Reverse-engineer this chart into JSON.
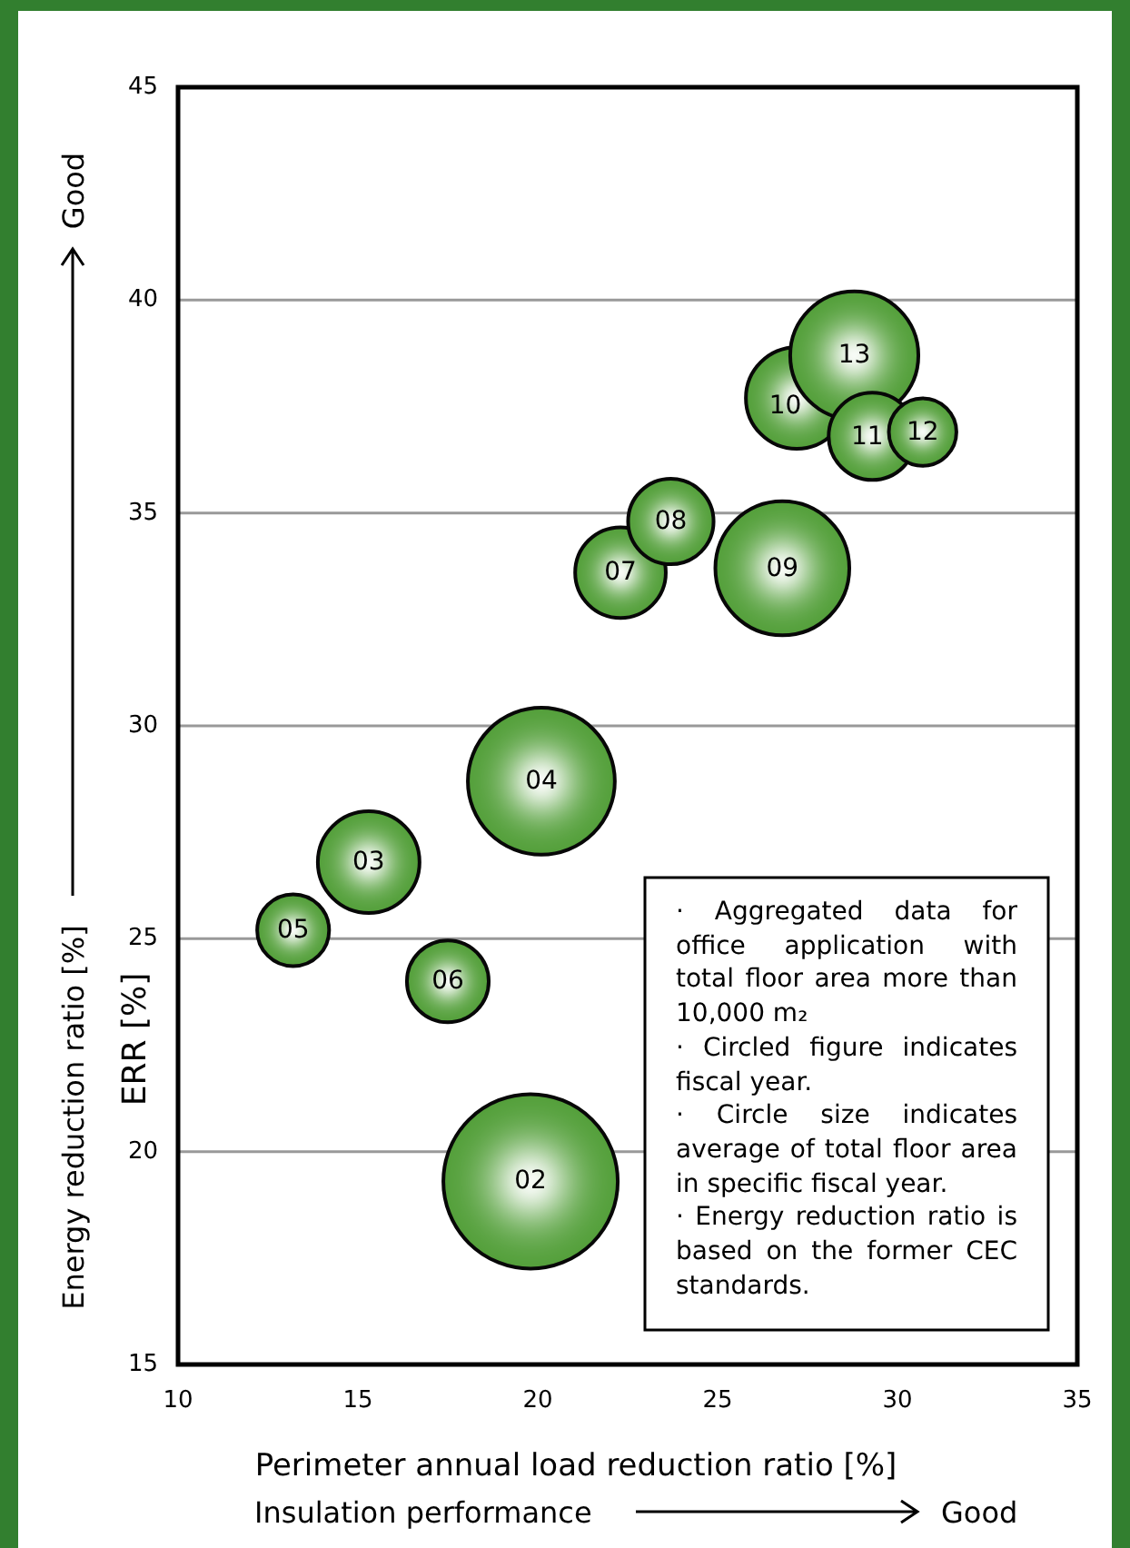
{
  "chart_data": {
    "type": "bubble",
    "xlabel": "Perimeter annual load reduction ratio [%]",
    "ylabel": "ERR [%]",
    "xlim": [
      10,
      35
    ],
    "xticks": [
      10,
      15,
      20,
      25,
      30,
      35
    ],
    "ylim": [
      15,
      45
    ],
    "yticks": [
      15,
      20,
      25,
      30,
      35,
      40,
      45
    ],
    "grid": "y",
    "series": [
      {
        "name": "02",
        "color": "#4f9d35",
        "x": [
          19.8
        ],
        "values": [
          19.3
        ],
        "sizes": [
          1
        ]
      },
      {
        "name": "03",
        "color": "#4f9d35",
        "x": [
          15.3
        ],
        "values": [
          26.8
        ],
        "sizes": [
          0.34
        ]
      },
      {
        "name": "04",
        "color": "#4f9d35",
        "x": [
          20.1
        ],
        "values": [
          28.7
        ],
        "sizes": [
          0.71
        ]
      },
      {
        "name": "05",
        "color": "#4f9d35",
        "x": [
          13.2
        ],
        "values": [
          25.2
        ],
        "sizes": [
          0.17
        ]
      },
      {
        "name": "06",
        "color": "#4f9d35",
        "x": [
          17.5
        ],
        "values": [
          24.0
        ],
        "sizes": [
          0.22
        ]
      },
      {
        "name": "07",
        "color": "#4f9d35",
        "x": [
          22.3
        ],
        "values": [
          33.6
        ],
        "sizes": [
          0.27
        ]
      },
      {
        "name": "08",
        "color": "#4f9d35",
        "x": [
          23.7
        ],
        "values": [
          34.8
        ],
        "sizes": [
          0.24
        ]
      },
      {
        "name": "09",
        "color": "#4f9d35",
        "x": [
          26.8
        ],
        "values": [
          33.7
        ],
        "sizes": [
          0.59
        ]
      },
      {
        "name": "10",
        "color": "#4f9d35",
        "x": [
          27.2
        ],
        "values": [
          37.7
        ],
        "sizes": [
          0.34
        ]
      },
      {
        "name": "13",
        "color": "#4f9d35",
        "x": [
          28.8
        ],
        "values": [
          38.7
        ],
        "sizes": [
          0.54
        ]
      },
      {
        "name": "11",
        "color": "#4f9d35",
        "x": [
          29.3
        ],
        "values": [
          36.8
        ],
        "sizes": [
          0.25
        ]
      },
      {
        "name": "12",
        "color": "#4f9d35",
        "x": [
          30.7
        ],
        "values": [
          36.9
        ],
        "sizes": [
          0.15
        ]
      }
    ],
    "annotations": [
      "Energy reduction ratio [%]",
      "Good",
      "Insulation performance",
      "Good",
      "· Aggregated data for office application with total floor area more than 10,000 m₂",
      "· Circled figure indicates fiscal year.",
      "· Circle size indicates average of total floor area in specific fiscal year.",
      "· Energy reduction ratio is based on the former CEC standards."
    ]
  }
}
